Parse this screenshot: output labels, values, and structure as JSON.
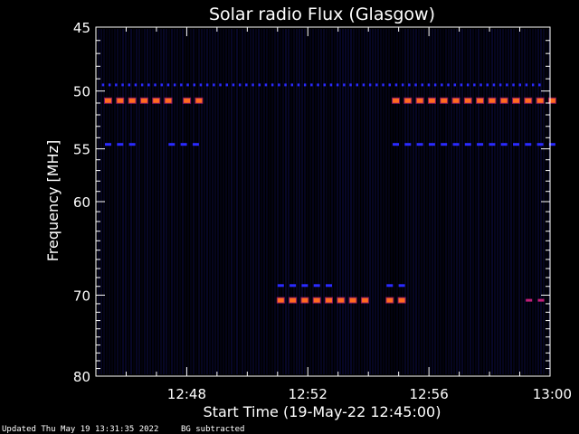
{
  "chart_data": {
    "type": "heatmap",
    "title": "Solar radio Flux (Glasgow)",
    "xlabel": "Start Time (19-May-22 12:45:00)",
    "ylabel": "Frequency [MHz]",
    "x_ticks": [
      "12:48",
      "12:52",
      "12:56",
      "13:00"
    ],
    "x_tick_minutes": [
      3,
      7,
      11,
      15
    ],
    "xlim_minutes": [
      0,
      15
    ],
    "y_ticks": [
      45,
      50,
      55,
      60,
      70,
      80
    ],
    "ylim": [
      45,
      80
    ],
    "y_scale": "log",
    "colormap": [
      "#000010",
      "#1a1aa0",
      "#2a2aff",
      "#c0207a",
      "#ff6a20",
      "#ff9a50"
    ],
    "series": [
      {
        "freq": 49.5,
        "intensity": "low",
        "t": [
          0.2,
          14.8
        ],
        "dashed": true
      },
      {
        "freq": 50.8,
        "intensity": "high",
        "t": [
          0.3,
          2.4
        ],
        "dashed": true
      },
      {
        "freq": 50.8,
        "intensity": "high",
        "t": [
          2.9,
          3.3
        ],
        "dashed": true
      },
      {
        "freq": 50.8,
        "intensity": "high",
        "t": [
          9.8,
          15.0
        ],
        "dashed": true
      },
      {
        "freq": 54.6,
        "intensity": "low",
        "t": [
          0.3,
          1.1
        ],
        "dashed": true
      },
      {
        "freq": 54.6,
        "intensity": "low",
        "t": [
          2.4,
          3.2
        ],
        "dashed": true
      },
      {
        "freq": 54.6,
        "intensity": "low",
        "t": [
          9.8,
          15.0
        ],
        "dashed": true
      },
      {
        "freq": 68.9,
        "intensity": "low",
        "t": [
          6.0,
          7.8
        ],
        "dashed": true
      },
      {
        "freq": 68.9,
        "intensity": "low",
        "t": [
          9.6,
          10.2
        ],
        "dashed": true
      },
      {
        "freq": 70.6,
        "intensity": "high",
        "t": [
          6.0,
          8.8
        ],
        "dashed": true
      },
      {
        "freq": 70.6,
        "intensity": "high",
        "t": [
          9.6,
          10.3
        ],
        "dashed": true
      },
      {
        "freq": 70.6,
        "intensity": "mid",
        "t": [
          14.2,
          14.9
        ],
        "dashed": true
      }
    ]
  },
  "footer": {
    "updated": "Updated Thu May 19 13:31:35 2022",
    "note": "BG subtracted"
  }
}
